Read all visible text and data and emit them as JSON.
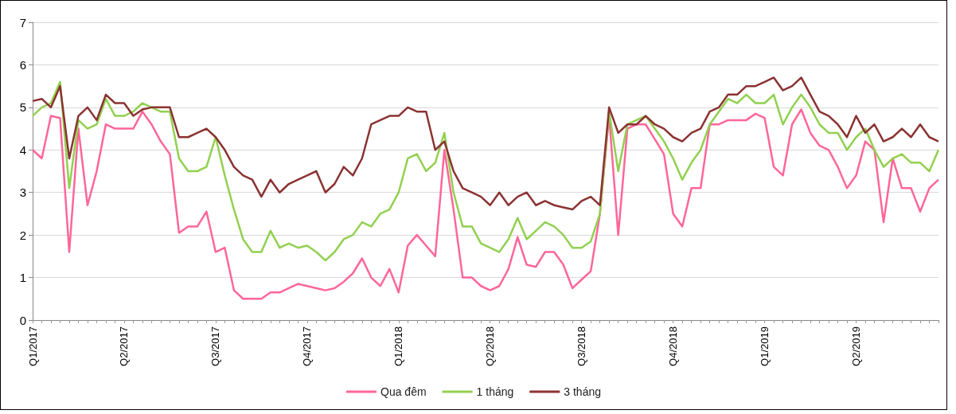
{
  "chart_data": {
    "type": "line",
    "categories": [
      "Q1/2017",
      null,
      null,
      null,
      null,
      null,
      null,
      null,
      null,
      null,
      "Q2/2017",
      null,
      null,
      null,
      null,
      null,
      null,
      null,
      null,
      null,
      "Q3/2017",
      null,
      null,
      null,
      null,
      null,
      null,
      null,
      null,
      null,
      "Q4/2017",
      null,
      null,
      null,
      null,
      null,
      null,
      null,
      null,
      null,
      "Q1/2018",
      null,
      null,
      null,
      null,
      null,
      null,
      null,
      null,
      null,
      "Q2/2018",
      null,
      null,
      null,
      null,
      null,
      null,
      null,
      null,
      null,
      "Q3/2018",
      null,
      null,
      null,
      null,
      null,
      null,
      null,
      null,
      null,
      "Q4/2018",
      null,
      null,
      null,
      null,
      null,
      null,
      null,
      null,
      null,
      "Q1/2019",
      null,
      null,
      null,
      null,
      null,
      null,
      null,
      null,
      null,
      "Q2/2019",
      null,
      null,
      null,
      null,
      null,
      null,
      null,
      null,
      null
    ],
    "series": [
      {
        "name": "Qua đêm",
        "color": "#ff6699",
        "values": [
          4.0,
          3.8,
          4.8,
          4.75,
          1.6,
          4.5,
          2.7,
          3.5,
          4.6,
          4.5,
          4.5,
          4.5,
          4.9,
          4.6,
          4.2,
          3.9,
          2.05,
          2.2,
          2.2,
          2.55,
          1.6,
          1.7,
          0.7,
          0.5,
          0.5,
          0.5,
          0.65,
          0.65,
          0.75,
          0.85,
          0.8,
          0.75,
          0.7,
          0.75,
          0.9,
          1.1,
          1.45,
          1.0,
          0.8,
          1.2,
          0.65,
          1.75,
          2.0,
          1.75,
          1.5,
          4.0,
          2.6,
          1.0,
          1.0,
          0.8,
          0.7,
          0.8,
          1.2,
          1.95,
          1.3,
          1.25,
          1.6,
          1.6,
          1.3,
          0.75,
          0.95,
          1.15,
          2.5,
          4.8,
          2.0,
          4.5,
          4.6,
          4.6,
          4.25,
          3.9,
          2.5,
          2.2,
          3.1,
          3.1,
          4.6,
          4.6,
          4.7,
          4.7,
          4.7,
          4.85,
          4.75,
          3.6,
          3.4,
          4.6,
          4.95,
          4.4,
          4.1,
          4.0,
          3.6,
          3.1,
          3.4,
          4.2,
          4.0,
          2.3,
          3.8,
          3.1,
          3.1,
          2.55,
          3.1,
          3.3
        ]
      },
      {
        "name": "1 tháng",
        "color": "#92d050",
        "values": [
          4.8,
          5.0,
          5.1,
          5.6,
          3.1,
          4.7,
          4.5,
          4.6,
          5.2,
          4.8,
          4.8,
          4.9,
          5.1,
          5.0,
          4.9,
          4.9,
          3.8,
          3.5,
          3.5,
          3.6,
          4.3,
          3.4,
          2.6,
          1.9,
          1.6,
          1.6,
          2.1,
          1.7,
          1.8,
          1.7,
          1.75,
          1.6,
          1.4,
          1.6,
          1.9,
          2.0,
          2.3,
          2.2,
          2.5,
          2.6,
          3.0,
          3.8,
          3.9,
          3.5,
          3.7,
          4.4,
          3.0,
          2.2,
          2.2,
          1.8,
          1.7,
          1.6,
          1.9,
          2.4,
          1.9,
          2.1,
          2.3,
          2.2,
          2.0,
          1.7,
          1.7,
          1.85,
          2.5,
          4.9,
          3.5,
          4.6,
          4.7,
          4.8,
          4.5,
          4.2,
          3.8,
          3.3,
          3.7,
          4.0,
          4.6,
          4.9,
          5.2,
          5.1,
          5.3,
          5.1,
          5.1,
          5.3,
          4.6,
          5.0,
          5.3,
          5.0,
          4.6,
          4.4,
          4.4,
          4.0,
          4.3,
          4.5,
          4.0,
          3.6,
          3.8,
          3.9,
          3.7,
          3.7,
          3.5,
          4.0
        ]
      },
      {
        "name": "3 tháng",
        "color": "#8b3232",
        "values": [
          5.15,
          5.2,
          5.0,
          5.5,
          3.8,
          4.8,
          5.0,
          4.7,
          5.3,
          5.1,
          5.1,
          4.8,
          4.95,
          5.0,
          5.0,
          5.0,
          4.3,
          4.3,
          4.4,
          4.5,
          4.3,
          4.0,
          3.6,
          3.4,
          3.3,
          2.9,
          3.3,
          3.0,
          3.2,
          3.3,
          3.4,
          3.5,
          3.0,
          3.2,
          3.6,
          3.4,
          3.8,
          4.6,
          4.7,
          4.8,
          4.8,
          5.0,
          4.9,
          4.9,
          4.0,
          4.2,
          3.5,
          3.1,
          3.0,
          2.9,
          2.7,
          3.0,
          2.7,
          2.9,
          3.0,
          2.7,
          2.8,
          2.7,
          2.65,
          2.6,
          2.8,
          2.9,
          2.7,
          5.0,
          4.4,
          4.6,
          4.6,
          4.8,
          4.6,
          4.5,
          4.3,
          4.2,
          4.4,
          4.5,
          4.9,
          5.0,
          5.3,
          5.3,
          5.5,
          5.5,
          5.6,
          5.7,
          5.4,
          5.5,
          5.7,
          5.3,
          4.9,
          4.8,
          4.6,
          4.3,
          4.8,
          4.4,
          4.6,
          4.2,
          4.3,
          4.5,
          4.3,
          4.6,
          4.3,
          4.2
        ]
      }
    ],
    "ylim": [
      0,
      7
    ],
    "yticks": [
      0,
      1,
      2,
      3,
      4,
      5,
      6,
      7
    ],
    "grid": "y",
    "legend": "bottom",
    "marker": "none",
    "line_style": "solid"
  }
}
